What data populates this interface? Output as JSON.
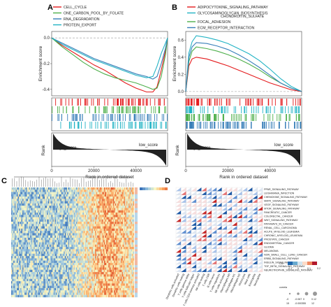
{
  "panels": {
    "A": {
      "letter": "A",
      "legend": [
        "CELL_CYCLE",
        "ONE_CARBON_POOL_BY_FOLATE",
        "RNA_DEGRADATION",
        "PROTEIN_EXPORT"
      ],
      "colors": [
        "#e41a1c",
        "#4daf4a",
        "#377eb8",
        "#21b3c4"
      ],
      "ylabel": "Enrichment score",
      "rank_ylabel": "Rank",
      "high_label": "high_score",
      "low_label": "low_score",
      "xlabel": "Rank in ordered dataset"
    },
    "B": {
      "letter": "B",
      "legend": [
        "ADIPOCYTOKINE_SIGNALING_PATHWAY",
        "GLYCOSAMINOGLYCAN_BIOSYNTHESIS_CHONDROITIN_SULFATE",
        "FOCAL_ADHESION",
        "ECM_RECEPTOR_INTERACTION"
      ],
      "colors": [
        "#e41a1c",
        "#21b3c4",
        "#4daf4a",
        "#377eb8"
      ],
      "ylabel": "Enrichment score",
      "rank_ylabel": "Rank",
      "high_label": "high_score",
      "low_label": "low_score",
      "xlabel": "Rank in ordered dataset"
    },
    "C": {
      "letter": "C"
    },
    "D": {
      "letter": "D",
      "legend_title": "Cor",
      "legend_ticks": [
        "-0.1",
        "0",
        "0.1",
        "0.2"
      ],
      "size_title": "correla",
      "size_ticks": [
        "-0",
        "-0.067",
        "0",
        "0.12"
      ],
      "size_ticks2": [
        "15",
        "-0.0003",
        "55",
        "12"
      ],
      "pathways": [
        "PPAR_SIGNALING_PATHWAY",
        "LEISHMANIA_INFECTION",
        "CHEMOKINE_SIGNALING_PATHWAY",
        "MAPK_SIGNALING_PATHWAY",
        "VEGF_SIGNALING_PATHWAY",
        "MTOR_SIGNALING_PATHWAY",
        "PANCREATIC_CANCER",
        "COLORECTAL_CANCER",
        "WNT_SIGNALING_PATHWAY",
        "PATHWAYS_IN_CANCER",
        "RENAL_CELL_CARCINOMA",
        "ACUTE_MYELOID_LEUKEMIA",
        "CHRONIC_MYELOID_LEUKEMIA",
        "PROSTATE_CANCER",
        "ENDOMETRIAL_CANCER",
        "GLIOMA",
        "MELANOMA",
        "NON_SMALL_CELL_LUNG_CANCER",
        "ERBB_SIGNALING_PATHWAY",
        "INSULIN_SIGNALING_PATHWAY",
        "TGF_BETA_SIGNALING_PATHWAY",
        "NEUROTROPHIN_SIGNALING_PATHWAY"
      ],
      "cells": [
        "B cells naive",
        "B cells memory",
        "Plasma cells",
        "T cells CD8",
        "T cells CD4 naive",
        "T cells CD4 memory resting",
        "T cells CD4 memory activated",
        "T cells follicular helper",
        "T cells regulatory (Tregs)",
        "NK cells resting",
        "NK cells activated",
        "Monocytes",
        "Macrophages M0",
        "Macrophages M1",
        "Macrophages M2",
        "Dendritic cells resting",
        "Dendritic cells activated",
        "Mast cells resting",
        "Mast cells activated",
        "Eosinophils",
        "Neutrophils"
      ],
      "cells_visible": [
        "Dendritic cells activated",
        "Dendritic cells resting",
        "T cells gamma delta",
        "T cells follicular helper",
        "T cells CD4 memory activated",
        "NK cells resting",
        "T cells CD8",
        "B cells naive",
        "T cells regulatory",
        "NK cells activated",
        "Macrophages M0",
        "Macrophages M1",
        "Macrophages M2",
        "Monocytes",
        "Mast cells",
        "Eosinophils",
        "Neutrophils"
      ]
    }
  },
  "chart_data": [
    {
      "type": "line",
      "panel": "A",
      "ylabel": "Enrichment score",
      "xlabel": "Rank in ordered dataset",
      "ylim": [
        -0.45,
        0.05
      ],
      "yticks": [
        "0.0",
        "-0.2",
        "-0.4"
      ],
      "xlim": [
        0,
        55000
      ],
      "xticks": [
        "0",
        "20000",
        "40000"
      ],
      "x": [
        0,
        5000,
        10000,
        15000,
        20000,
        25000,
        30000,
        35000,
        40000,
        45000,
        48000,
        50000,
        52000,
        54000,
        55000
      ],
      "series": [
        {
          "name": "CELL_CYCLE",
          "values": [
            0,
            -0.06,
            -0.11,
            -0.16,
            -0.21,
            -0.25,
            -0.3,
            -0.35,
            -0.39,
            -0.42,
            -0.42,
            -0.38,
            -0.25,
            -0.1,
            0
          ]
        },
        {
          "name": "ONE_CARBON_POOL_BY_FOLATE",
          "values": [
            0,
            -0.07,
            -0.13,
            -0.19,
            -0.24,
            -0.28,
            -0.31,
            -0.33,
            -0.35,
            -0.38,
            -0.4,
            -0.39,
            -0.3,
            -0.13,
            0
          ]
        },
        {
          "name": "RNA_DEGRADATION",
          "values": [
            0,
            -0.04,
            -0.08,
            -0.12,
            -0.16,
            -0.19,
            -0.22,
            -0.25,
            -0.28,
            -0.3,
            -0.32,
            -0.3,
            -0.2,
            -0.08,
            0
          ]
        },
        {
          "name": "PROTEIN_EXPORT",
          "values": [
            0,
            -0.05,
            -0.09,
            -0.13,
            -0.17,
            -0.2,
            -0.23,
            -0.26,
            -0.29,
            -0.31,
            -0.3,
            -0.22,
            -0.12,
            -0.04,
            0
          ]
        }
      ]
    },
    {
      "type": "line",
      "panel": "B",
      "ylabel": "Enrichment score",
      "xlabel": "Rank in ordered dataset",
      "ylim": [
        -0.05,
        0.7
      ],
      "yticks": [
        "0.6",
        "0.4",
        "0.2",
        "0.0"
      ],
      "xlim": [
        0,
        55000
      ],
      "xticks": [
        "0",
        "20000",
        "40000"
      ],
      "x": [
        0,
        1500,
        3000,
        5000,
        10000,
        15000,
        20000,
        25000,
        30000,
        35000,
        40000,
        45000,
        50000,
        55000
      ],
      "series": [
        {
          "name": "ADIPOCYTOKINE_SIGNALING_PATHWAY",
          "values": [
            0,
            0.3,
            0.38,
            0.4,
            0.38,
            0.34,
            0.3,
            0.25,
            0.2,
            0.15,
            0.1,
            0.06,
            0.02,
            0
          ]
        },
        {
          "name": "GLYCOSAMINOGLYCAN_BIOSYNTHESIS_CHONDROITIN_SULFATE",
          "values": [
            0,
            0.45,
            0.58,
            0.65,
            0.63,
            0.6,
            0.56,
            0.5,
            0.44,
            0.36,
            0.26,
            0.15,
            0.06,
            0
          ]
        },
        {
          "name": "FOCAL_ADHESION",
          "values": [
            0,
            0.35,
            0.47,
            0.52,
            0.5,
            0.47,
            0.43,
            0.38,
            0.32,
            0.25,
            0.17,
            0.1,
            0.04,
            0
          ]
        },
        {
          "name": "ECM_RECEPTOR_INTERACTION",
          "values": [
            0,
            0.4,
            0.52,
            0.57,
            0.56,
            0.53,
            0.49,
            0.43,
            0.36,
            0.28,
            0.19,
            0.1,
            0.04,
            0
          ]
        }
      ]
    },
    {
      "type": "heatmap",
      "panel": "C",
      "color_scale": [
        "#3b73b9",
        "#9ec9e2",
        "#f7f7c5",
        "#fdb26b",
        "#e0562e"
      ]
    }
  ]
}
